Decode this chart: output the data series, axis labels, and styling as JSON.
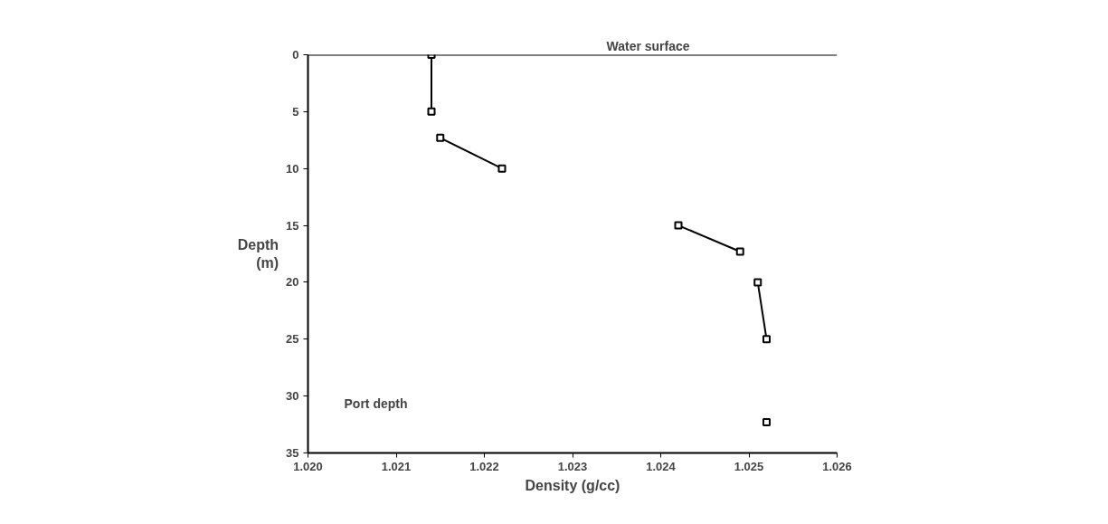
{
  "chart_data": {
    "type": "line",
    "xlabel": "Density (g/cc)",
    "ylabel": "Depth\n(m)",
    "xlim": [
      1.02,
      1.026
    ],
    "xticks": [
      {
        "value": 1.02,
        "label": "1.020"
      },
      {
        "value": 1.021,
        "label": "1.021"
      },
      {
        "value": 1.022,
        "label": "1.022"
      },
      {
        "value": 1.023,
        "label": "1.023"
      },
      {
        "value": 1.024,
        "label": "1.024"
      },
      {
        "value": 1.025,
        "label": "1.025"
      },
      {
        "value": 1.026,
        "label": "1.026"
      }
    ],
    "ylim": [
      35,
      0
    ],
    "yticks": [
      0,
      5,
      10,
      15,
      20,
      25,
      30,
      35
    ],
    "marker": "square",
    "grid": false,
    "series": [
      {
        "color": "#000000",
        "x": [
          1.0214,
          1.0214
        ],
        "values": [
          0,
          5
        ]
      },
      {
        "color": "#000000",
        "x": [
          1.0215,
          1.0222
        ],
        "values": [
          7.3,
          10
        ]
      },
      {
        "color": "#000000",
        "x": [
          1.0242,
          1.0249
        ],
        "values": [
          15,
          17.3
        ]
      },
      {
        "color": "#000000",
        "x": [
          1.0251,
          1.0252
        ],
        "values": [
          20,
          25
        ]
      },
      {
        "color": "#000000",
        "type": "scatter",
        "x": [
          1.0252
        ],
        "values": [
          32.3
        ]
      }
    ],
    "ref_lines": [
      {
        "axis": "y",
        "value": 0,
        "color": "#000000",
        "label": "Water surface"
      }
    ],
    "annotations": [
      "Port depth"
    ]
  }
}
